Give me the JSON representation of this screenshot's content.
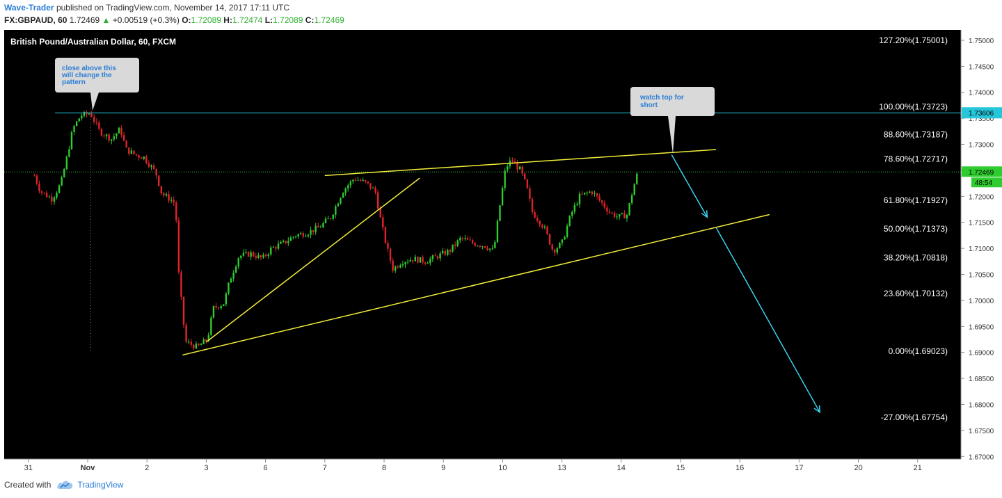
{
  "header": {
    "author": "Wave-Trader",
    "published_text": "published on TradingView.com, November 14, 2017 17:11 UTC",
    "symbol": "FX:GBPAUD, 60",
    "last": "1.72469",
    "change": "+0.00519 (+0.3%)",
    "o_label": "O:",
    "o_value": "1.72089",
    "h_label": "H:",
    "h_value": "1.72474",
    "l_label": "L:",
    "l_value": "1.72089",
    "c_label": "C:",
    "c_value": "1.72469"
  },
  "footer": {
    "created_with": "Created with",
    "brand": "TradingView"
  },
  "colors": {
    "background": "#000000",
    "up_candle": "#2ecc2e",
    "down_candle": "#e0242a",
    "trendline": "#f2ee3a",
    "arrow": "#39d4f0",
    "level_line": "#26c6da",
    "price_line": "#2ecc2e",
    "bubble": "#d9d9d9",
    "bubble_text": "#2b7dd6"
  },
  "chart_data": {
    "type": "candlestick",
    "title": "British Pound/Australian Dollar, 60, FXCM",
    "x_ticks": [
      "31",
      "Nov",
      "2",
      "3",
      "6",
      "7",
      "8",
      "9",
      "10",
      "13",
      "14",
      "15",
      "16",
      "17",
      "20",
      "21"
    ],
    "y_ticks": [
      "1.75000",
      "1.74500",
      "1.74000",
      "1.73500",
      "1.73000",
      "1.72500",
      "1.72000",
      "1.71500",
      "1.71000",
      "1.70500",
      "1.70000",
      "1.69500",
      "1.69000",
      "1.68500",
      "1.68000",
      "1.67500",
      "1.67000"
    ],
    "ylim": [
      1.6695,
      1.752
    ],
    "fib_levels": [
      {
        "label": "127.20%(1.75001)",
        "value": 1.75001
      },
      {
        "label": "100.00%(1.73723)",
        "value": 1.73723
      },
      {
        "label": "88.60%(1.73187)",
        "value": 1.73187
      },
      {
        "label": "78.60%(1.72717)",
        "value": 1.72717
      },
      {
        "label": "61.80%(1.71927)",
        "value": 1.71927
      },
      {
        "label": "50.00%(1.71373)",
        "value": 1.71373
      },
      {
        "label": "38.20%(1.70818)",
        "value": 1.70818
      },
      {
        "label": "23.60%(1.70132)",
        "value": 1.70132
      },
      {
        "label": "0.00%(1.69023)",
        "value": 1.69023
      },
      {
        "label": "-27.00%(1.67754)",
        "value": 1.67754
      }
    ],
    "horizontal_level": {
      "label": "1.73606",
      "value": 1.73606
    },
    "current_price": {
      "label": "1.72469",
      "value": 1.72469,
      "countdown": "48:54"
    },
    "close_path": [
      [
        -0.9,
        1.724
      ],
      [
        -0.8,
        1.721
      ],
      [
        -0.6,
        1.7195
      ],
      [
        -0.45,
        1.7225
      ],
      [
        -0.35,
        1.7275
      ],
      [
        -0.25,
        1.733
      ],
      [
        -0.12,
        1.7355
      ],
      [
        0.05,
        1.736
      ],
      [
        0.2,
        1.7325
      ],
      [
        0.4,
        1.731
      ],
      [
        0.55,
        1.733
      ],
      [
        0.65,
        1.729
      ],
      [
        0.8,
        1.728
      ],
      [
        0.95,
        1.7275
      ],
      [
        1.05,
        1.726
      ],
      [
        1.15,
        1.7245
      ],
      [
        1.25,
        1.7205
      ],
      [
        1.45,
        1.719
      ],
      [
        1.5,
        1.715
      ],
      [
        1.52,
        1.707
      ],
      [
        1.57,
        1.701
      ],
      [
        1.65,
        1.692
      ],
      [
        1.85,
        1.691
      ],
      [
        2.02,
        1.6925
      ],
      [
        2.12,
        1.6985
      ],
      [
        2.3,
        1.6995
      ],
      [
        2.4,
        1.704
      ],
      [
        2.55,
        1.7085
      ],
      [
        2.75,
        1.709
      ],
      [
        2.95,
        1.708
      ],
      [
        3.1,
        1.71
      ],
      [
        3.3,
        1.711
      ],
      [
        3.5,
        1.7125
      ],
      [
        3.7,
        1.713
      ],
      [
        3.9,
        1.714
      ],
      [
        4.1,
        1.716
      ],
      [
        4.3,
        1.721
      ],
      [
        4.5,
        1.7235
      ],
      [
        4.7,
        1.7225
      ],
      [
        4.85,
        1.721
      ],
      [
        4.95,
        1.715
      ],
      [
        5.05,
        1.71
      ],
      [
        5.15,
        1.706
      ],
      [
        5.3,
        1.7075
      ],
      [
        5.5,
        1.708
      ],
      [
        5.7,
        1.7075
      ],
      [
        5.9,
        1.7085
      ],
      [
        6.1,
        1.7095
      ],
      [
        6.3,
        1.712
      ],
      [
        6.5,
        1.711
      ],
      [
        6.7,
        1.7105
      ],
      [
        6.85,
        1.7095
      ],
      [
        6.95,
        1.718
      ],
      [
        7.05,
        1.7255
      ],
      [
        7.15,
        1.727
      ],
      [
        7.3,
        1.725
      ],
      [
        7.4,
        1.722
      ],
      [
        7.5,
        1.717
      ],
      [
        7.7,
        1.714
      ],
      [
        7.85,
        1.7095
      ],
      [
        8.0,
        1.711
      ],
      [
        8.15,
        1.7165
      ],
      [
        8.3,
        1.72
      ],
      [
        8.5,
        1.721
      ],
      [
        8.65,
        1.719
      ],
      [
        8.8,
        1.717
      ],
      [
        8.95,
        1.716
      ],
      [
        9.1,
        1.7165
      ],
      [
        9.2,
        1.7215
      ],
      [
        9.28,
        1.7247
      ]
    ],
    "trendlines": [
      {
        "name": "lower-support",
        "points": [
          [
            "2.6",
            1.6895
          ],
          [
            "16.5",
            1.7165
          ]
        ]
      },
      {
        "name": "upper-resistance",
        "points": [
          [
            "7.0",
            1.724
          ],
          [
            "15.6",
            1.729
          ]
        ]
      },
      {
        "name": "inner-channel",
        "points": [
          [
            "3.0",
            1.692
          ],
          [
            "8.6",
            1.7235
          ]
        ]
      }
    ],
    "arrows": [
      {
        "name": "short-arrow-1",
        "from": [
          "14.85",
          1.728
        ],
        "to": [
          "15.45",
          1.716
        ]
      },
      {
        "name": "short-arrow-2",
        "from": [
          "15.6",
          1.714
        ],
        "to": [
          "17.35",
          1.6785
        ]
      }
    ],
    "annotations": [
      {
        "text": "close above this will change the pattern",
        "lines": [
          "close above this",
          "will change the",
          "pattern"
        ]
      },
      {
        "text": "watch top for short",
        "lines": [
          "watch top for",
          "short"
        ]
      }
    ]
  }
}
